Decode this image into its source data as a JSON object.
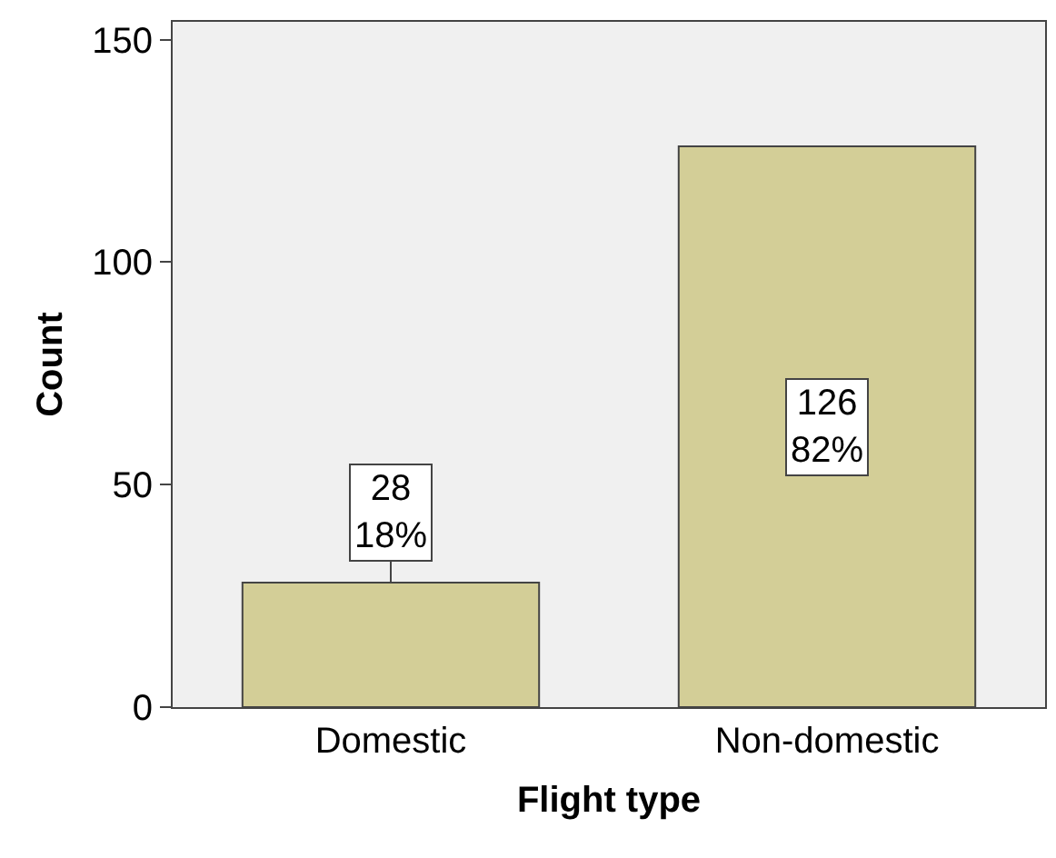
{
  "chart_data": {
    "type": "bar",
    "xlabel": "Flight type",
    "ylabel": "Count",
    "categories": [
      "Domestic",
      "Non-domestic"
    ],
    "values": [
      28,
      126
    ],
    "value_labels": [
      "28\n18%",
      "126\n82%"
    ],
    "color": "#d3ce97",
    "ylim": [
      0,
      154
    ],
    "yticks": [
      0,
      50,
      100,
      150
    ],
    "grid": false,
    "legend": false
  }
}
